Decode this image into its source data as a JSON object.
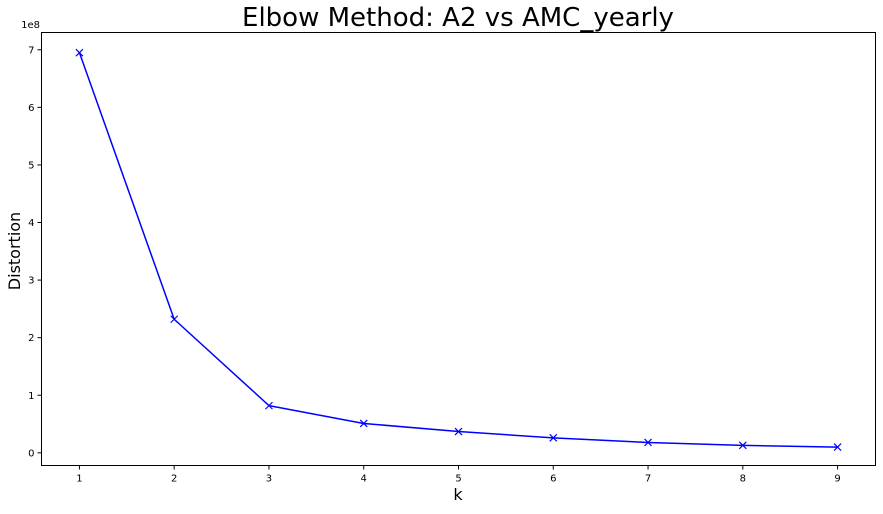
{
  "chart_data": {
    "type": "line",
    "title": "Elbow Method: A2 vs AMC_yearly",
    "xlabel": "k",
    "ylabel": "Distortion",
    "y_offset_label": "1e8",
    "x": [
      1,
      2,
      3,
      4,
      5,
      6,
      7,
      8,
      9
    ],
    "series": [
      {
        "values": [
          6.95,
          2.32,
          0.82,
          0.51,
          0.37,
          0.26,
          0.18,
          0.13,
          0.1
        ],
        "color": "#0000ff",
        "marker": "x"
      }
    ],
    "xlim": [
      0.6,
      9.4
    ],
    "ylim": [
      -0.22,
      7.3
    ],
    "x_ticks": [
      1,
      2,
      3,
      4,
      5,
      6,
      7,
      8,
      9
    ],
    "y_ticks": [
      0,
      1,
      2,
      3,
      4,
      5,
      6,
      7
    ],
    "grid": false
  }
}
